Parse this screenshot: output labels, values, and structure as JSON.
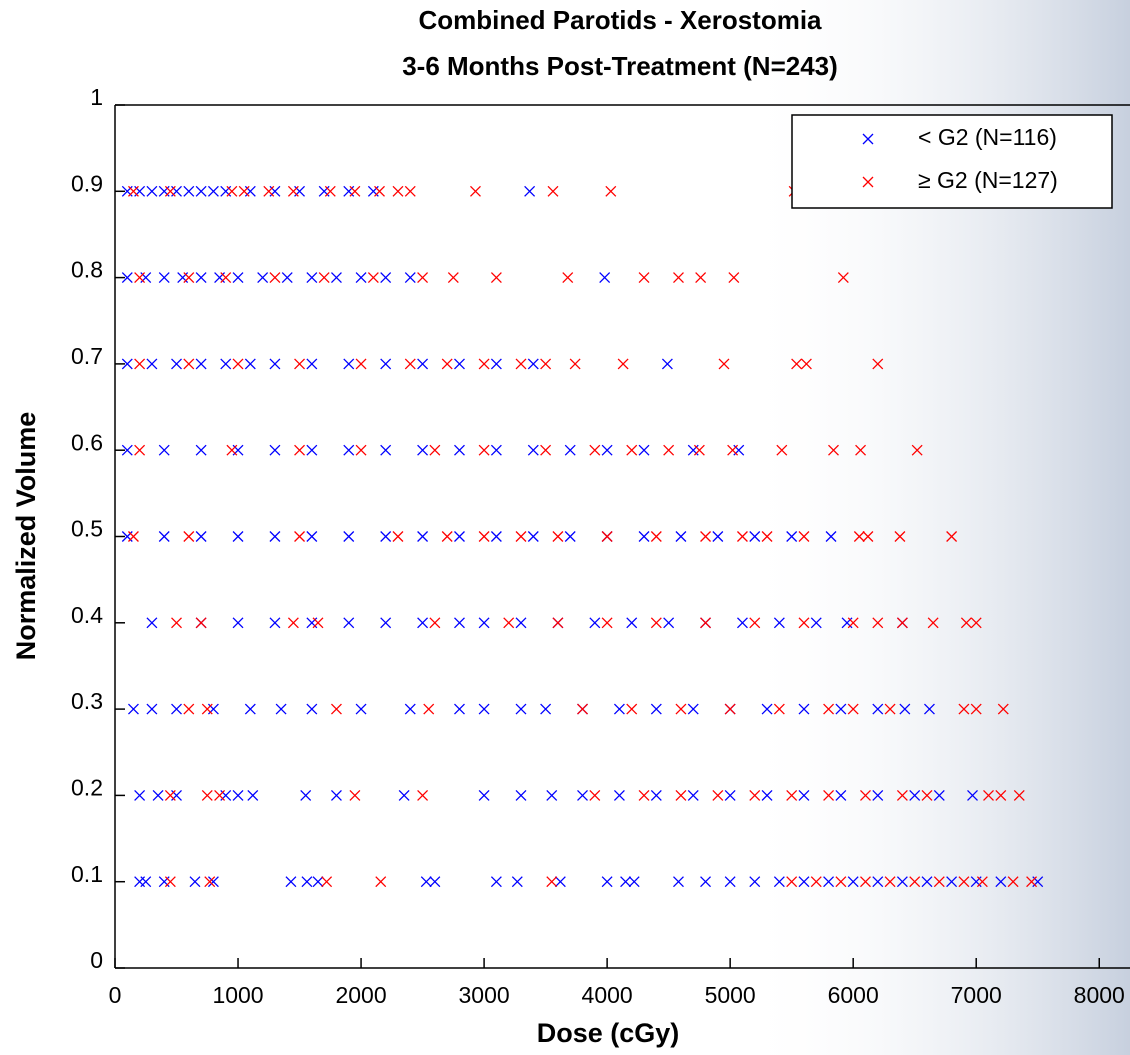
{
  "chart_data": {
    "type": "scatter",
    "title": "Combined Parotids - Xerostomia",
    "subtitle": "3-6 Months Post-Treatment (N=243)",
    "x_label": "Dose (cGy)",
    "y_label": "Normalized Volume",
    "xlim": [
      0,
      8250
    ],
    "ylim": [
      0,
      1
    ],
    "xticks": [
      0,
      1000,
      2000,
      3000,
      4000,
      5000,
      6000,
      7000,
      8000
    ],
    "yticks": [
      0,
      0.1,
      0.2,
      0.3,
      0.4,
      0.5,
      0.6,
      0.7,
      0.8,
      0.9,
      1
    ],
    "legend": "upper right",
    "series": [
      {
        "name": "< G2 (N=116)",
        "color": "#0000ff",
        "x": [
          100,
          200,
          300,
          400,
          500,
          600,
          700,
          800,
          900,
          1100,
          1300,
          1500,
          1700,
          1900,
          2100,
          3370,
          100,
          250,
          400,
          550,
          700,
          850,
          1000,
          1200,
          1400,
          1600,
          1800,
          2000,
          2200,
          2400,
          3980,
          100,
          300,
          500,
          700,
          900,
          1100,
          1300,
          1600,
          1900,
          2200,
          2500,
          2800,
          3100,
          3400,
          4490,
          100,
          400,
          700,
          1000,
          1300,
          1600,
          1900,
          2200,
          2500,
          2800,
          3100,
          3400,
          3700,
          4000,
          4300,
          4700,
          5070,
          100,
          400,
          700,
          1000,
          1300,
          1600,
          1900,
          2200,
          2500,
          2800,
          3100,
          3400,
          3700,
          4000,
          4300,
          4600,
          4900,
          5200,
          5500,
          5820,
          300,
          700,
          1000,
          1300,
          1600,
          1900,
          2200,
          2500,
          2800,
          3000,
          3300,
          3600,
          3900,
          4200,
          4500,
          4800,
          5100,
          5400,
          5700,
          5950,
          6400,
          150,
          300,
          500,
          800,
          1100,
          1350,
          1600,
          2000,
          2400,
          2800,
          3000,
          3300,
          3500,
          3800,
          4100,
          4400,
          4700,
          5000,
          5300,
          5600,
          5900,
          6200,
          6420,
          6620,
          200,
          350,
          500,
          900,
          1000,
          1120,
          1550,
          1800,
          2350,
          3000,
          3300,
          3550,
          3800,
          4100,
          4400,
          4700,
          5000,
          5300,
          5600,
          5900,
          6200,
          6500,
          6700,
          6970,
          200,
          250,
          400,
          650,
          800,
          1430,
          1560,
          1650,
          2530,
          2600,
          3100,
          3270,
          3620,
          4000,
          4150,
          4220,
          4580,
          4800,
          5000,
          5200,
          5400,
          5600,
          5800,
          6000,
          6200,
          6400,
          6600,
          6800,
          7000,
          7200,
          7500
        ],
        "values": [
          0.9,
          0.9,
          0.9,
          0.9,
          0.9,
          0.9,
          0.9,
          0.9,
          0.9,
          0.9,
          0.9,
          0.9,
          0.9,
          0.9,
          0.9,
          0.9,
          0.8,
          0.8,
          0.8,
          0.8,
          0.8,
          0.8,
          0.8,
          0.8,
          0.8,
          0.8,
          0.8,
          0.8,
          0.8,
          0.8,
          0.8,
          0.7,
          0.7,
          0.7,
          0.7,
          0.7,
          0.7,
          0.7,
          0.7,
          0.7,
          0.7,
          0.7,
          0.7,
          0.7,
          0.7,
          0.7,
          0.6,
          0.6,
          0.6,
          0.6,
          0.6,
          0.6,
          0.6,
          0.6,
          0.6,
          0.6,
          0.6,
          0.6,
          0.6,
          0.6,
          0.6,
          0.6,
          0.6,
          0.5,
          0.5,
          0.5,
          0.5,
          0.5,
          0.5,
          0.5,
          0.5,
          0.5,
          0.5,
          0.5,
          0.5,
          0.5,
          0.5,
          0.5,
          0.5,
          0.5,
          0.5,
          0.5,
          0.5,
          0.4,
          0.4,
          0.4,
          0.4,
          0.4,
          0.4,
          0.4,
          0.4,
          0.4,
          0.4,
          0.4,
          0.4,
          0.4,
          0.4,
          0.4,
          0.4,
          0.4,
          0.4,
          0.4,
          0.4,
          0.4,
          0.3,
          0.3,
          0.3,
          0.3,
          0.3,
          0.3,
          0.3,
          0.3,
          0.3,
          0.3,
          0.3,
          0.3,
          0.3,
          0.3,
          0.3,
          0.3,
          0.3,
          0.3,
          0.3,
          0.3,
          0.3,
          0.3,
          0.3,
          0.3,
          0.2,
          0.2,
          0.2,
          0.2,
          0.2,
          0.2,
          0.2,
          0.2,
          0.2,
          0.2,
          0.2,
          0.2,
          0.2,
          0.2,
          0.2,
          0.2,
          0.2,
          0.2,
          0.2,
          0.2,
          0.2,
          0.2,
          0.2,
          0.2,
          0.1,
          0.1,
          0.1,
          0.1,
          0.1,
          0.1,
          0.1,
          0.1,
          0.1,
          0.1,
          0.1,
          0.1,
          0.1,
          0.1,
          0.1,
          0.1,
          0.1,
          0.1,
          0.1,
          0.1,
          0.1,
          0.1,
          0.1,
          0.1,
          0.1,
          0.1,
          0.1,
          0.1,
          0.1,
          0.1,
          0.1
        ]
      },
      {
        "name": "≥ G2 (N=127)",
        "color": "#ff0000",
        "x": [
          150,
          450,
          950,
          1050,
          1250,
          1450,
          1750,
          1950,
          2150,
          2300,
          2400,
          2930,
          3560,
          4030,
          5520,
          200,
          600,
          900,
          1300,
          1700,
          2100,
          2500,
          2750,
          3100,
          3680,
          4300,
          4580,
          4760,
          5030,
          5920,
          200,
          600,
          1000,
          1500,
          2000,
          2400,
          2700,
          3000,
          3300,
          3500,
          3740,
          4130,
          4950,
          5540,
          5620,
          6200,
          200,
          950,
          1500,
          2000,
          2600,
          3000,
          3500,
          3900,
          4200,
          4500,
          4750,
          5020,
          5420,
          5840,
          6060,
          6520,
          150,
          600,
          1500,
          2300,
          2700,
          3000,
          3300,
          3600,
          4000,
          4400,
          4800,
          5100,
          5300,
          5600,
          6050,
          6120,
          6380,
          6800,
          500,
          700,
          1450,
          1650,
          2600,
          3200,
          3600,
          4000,
          4400,
          4800,
          5200,
          5600,
          6000,
          6200,
          6400,
          6650,
          6920,
          7000,
          600,
          750,
          1800,
          2550,
          3800,
          4200,
          4600,
          5000,
          5400,
          5800,
          6000,
          6300,
          6900,
          7000,
          7220,
          450,
          750,
          850,
          1950,
          2500,
          3900,
          4300,
          4600,
          4900,
          5200,
          5500,
          5800,
          6100,
          6400,
          6600,
          7100,
          7200,
          7350,
          450,
          770,
          1720,
          2160,
          3550,
          5500,
          5700,
          5900,
          6100,
          6300,
          6500,
          6700,
          6900,
          7050,
          7300,
          7450
        ],
        "values": [
          0.9,
          0.9,
          0.9,
          0.9,
          0.9,
          0.9,
          0.9,
          0.9,
          0.9,
          0.9,
          0.9,
          0.9,
          0.9,
          0.9,
          0.9,
          0.8,
          0.8,
          0.8,
          0.8,
          0.8,
          0.8,
          0.8,
          0.8,
          0.8,
          0.8,
          0.8,
          0.8,
          0.8,
          0.8,
          0.8,
          0.7,
          0.7,
          0.7,
          0.7,
          0.7,
          0.7,
          0.7,
          0.7,
          0.7,
          0.7,
          0.7,
          0.7,
          0.7,
          0.7,
          0.7,
          0.7,
          0.6,
          0.6,
          0.6,
          0.6,
          0.6,
          0.6,
          0.6,
          0.6,
          0.6,
          0.6,
          0.6,
          0.6,
          0.6,
          0.6,
          0.6,
          0.6,
          0.5,
          0.5,
          0.5,
          0.5,
          0.5,
          0.5,
          0.5,
          0.5,
          0.5,
          0.5,
          0.5,
          0.5,
          0.5,
          0.5,
          0.5,
          0.5,
          0.5,
          0.5,
          0.4,
          0.4,
          0.4,
          0.4,
          0.4,
          0.4,
          0.4,
          0.4,
          0.4,
          0.4,
          0.4,
          0.4,
          0.4,
          0.4,
          0.4,
          0.4,
          0.4,
          0.4,
          0.3,
          0.3,
          0.3,
          0.3,
          0.3,
          0.3,
          0.3,
          0.3,
          0.3,
          0.3,
          0.3,
          0.3,
          0.3,
          0.3,
          0.3,
          0.2,
          0.2,
          0.2,
          0.2,
          0.2,
          0.2,
          0.2,
          0.2,
          0.2,
          0.2,
          0.2,
          0.2,
          0.2,
          0.2,
          0.2,
          0.2,
          0.2,
          0.2,
          0.1,
          0.1,
          0.1,
          0.1,
          0.1,
          0.1,
          0.1,
          0.1,
          0.1,
          0.1,
          0.1,
          0.1,
          0.1,
          0.1,
          0.1,
          0.1
        ]
      }
    ]
  }
}
